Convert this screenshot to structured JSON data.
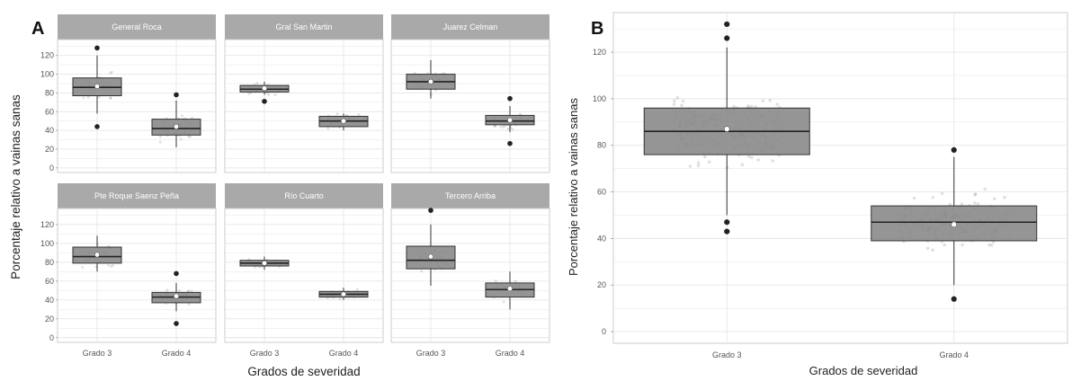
{
  "chart_data": [
    {
      "panel": "A",
      "type": "box",
      "xlabel": "Grados de severidad",
      "ylabel": "Porcentaje relativo a vainas sanas",
      "ylim": [
        -5,
        137
      ],
      "yticks": [
        0,
        20,
        40,
        60,
        80,
        100,
        120
      ],
      "categories": [
        "Grado 3",
        "Grado 4"
      ],
      "grid": true,
      "facets": [
        {
          "title": "General Roca",
          "boxes": [
            {
              "category": "Grado 3",
              "q1": 77,
              "median": 86,
              "q3": 96,
              "whisker_low": 58,
              "whisker_high": 120,
              "mean": 87,
              "outliers": [
                44,
                128
              ]
            },
            {
              "category": "Grado 4",
              "q1": 35,
              "median": 42,
              "q3": 52,
              "whisker_low": 22,
              "whisker_high": 72,
              "mean": 44,
              "outliers": [
                78
              ]
            }
          ]
        },
        {
          "title": "Gral San Martin",
          "boxes": [
            {
              "category": "Grado 3",
              "q1": 81,
              "median": 84,
              "q3": 88,
              "whisker_low": 78,
              "whisker_high": 92,
              "mean": 85,
              "outliers": [
                71
              ]
            },
            {
              "category": "Grado 4",
              "q1": 44,
              "median": 50,
              "q3": 55,
              "whisker_low": 40,
              "whisker_high": 58,
              "mean": 50,
              "outliers": []
            }
          ]
        },
        {
          "title": "Juarez Celman",
          "boxes": [
            {
              "category": "Grado 3",
              "q1": 84,
              "median": 92,
              "q3": 100,
              "whisker_low": 74,
              "whisker_high": 115,
              "mean": 92,
              "outliers": []
            },
            {
              "category": "Grado 4",
              "q1": 46,
              "median": 50,
              "q3": 56,
              "whisker_low": 38,
              "whisker_high": 66,
              "mean": 51,
              "outliers": [
                74,
                26
              ]
            }
          ]
        },
        {
          "title": "Pte Roque Saenz Peña",
          "boxes": [
            {
              "category": "Grado 3",
              "q1": 79,
              "median": 86,
              "q3": 96,
              "whisker_low": 70,
              "whisker_high": 108,
              "mean": 88,
              "outliers": []
            },
            {
              "category": "Grado 4",
              "q1": 37,
              "median": 43,
              "q3": 48,
              "whisker_low": 28,
              "whisker_high": 58,
              "mean": 44,
              "outliers": [
                68,
                15
              ]
            }
          ]
        },
        {
          "title": "Río Cuarto",
          "boxes": [
            {
              "category": "Grado 3",
              "q1": 76,
              "median": 79,
              "q3": 82,
              "whisker_low": 72,
              "whisker_high": 86,
              "mean": 79,
              "outliers": []
            },
            {
              "category": "Grado 4",
              "q1": 43,
              "median": 46,
              "q3": 49,
              "whisker_low": 40,
              "whisker_high": 53,
              "mean": 46,
              "outliers": []
            }
          ]
        },
        {
          "title": "Tercero Arriba",
          "boxes": [
            {
              "category": "Grado 3",
              "q1": 73,
              "median": 82,
              "q3": 97,
              "whisker_low": 55,
              "whisker_high": 120,
              "mean": 86,
              "outliers": [
                135
              ]
            },
            {
              "category": "Grado 4",
              "q1": 43,
              "median": 51,
              "q3": 58,
              "whisker_low": 30,
              "whisker_high": 70,
              "mean": 52,
              "outliers": []
            }
          ]
        }
      ]
    },
    {
      "panel": "B",
      "type": "box",
      "xlabel": "Grados de severidad",
      "ylabel": "Porcentaje relativo a vainas sanas",
      "ylim": [
        -5,
        137
      ],
      "yticks": [
        0,
        20,
        40,
        60,
        80,
        100,
        120
      ],
      "categories": [
        "Grado 3",
        "Grado 4"
      ],
      "grid": true,
      "boxes": [
        {
          "category": "Grado 3",
          "q1": 76,
          "median": 86,
          "q3": 96,
          "whisker_low": 50,
          "whisker_high": 122,
          "mean": 87,
          "outliers": [
            43,
            47,
            126,
            132
          ]
        },
        {
          "category": "Grado 4",
          "q1": 39,
          "median": 47,
          "q3": 54,
          "whisker_low": 20,
          "whisker_high": 75,
          "mean": 46,
          "outliers": [
            78,
            14
          ]
        }
      ]
    }
  ],
  "style": {
    "box_fill": "#8a8a8a",
    "strip_fill": "#a9a9a9",
    "panel_border": "#cccccc",
    "grid_color": "#e6e6e6",
    "point_color": "#777777",
    "mean_marker": "#ffffff"
  }
}
